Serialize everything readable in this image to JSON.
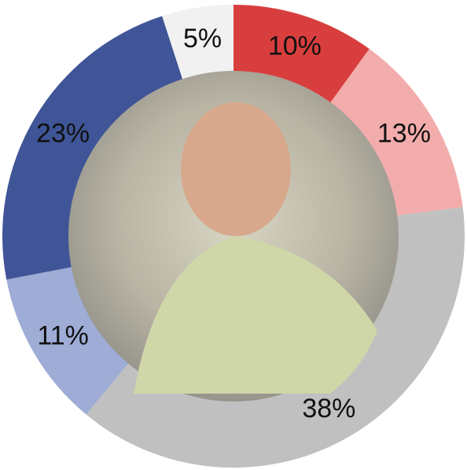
{
  "chart_data": {
    "type": "pie",
    "values": [
      10,
      13,
      38,
      11,
      23,
      5
    ],
    "value_labels": [
      "10%",
      "13%",
      "38%",
      "11%",
      "23%",
      "5%"
    ],
    "colors": [
      "#d93e3e",
      "#f2acab",
      "#c0c0c0",
      "#9eacd6",
      "#3f5597",
      "#f1f1f1"
    ]
  }
}
